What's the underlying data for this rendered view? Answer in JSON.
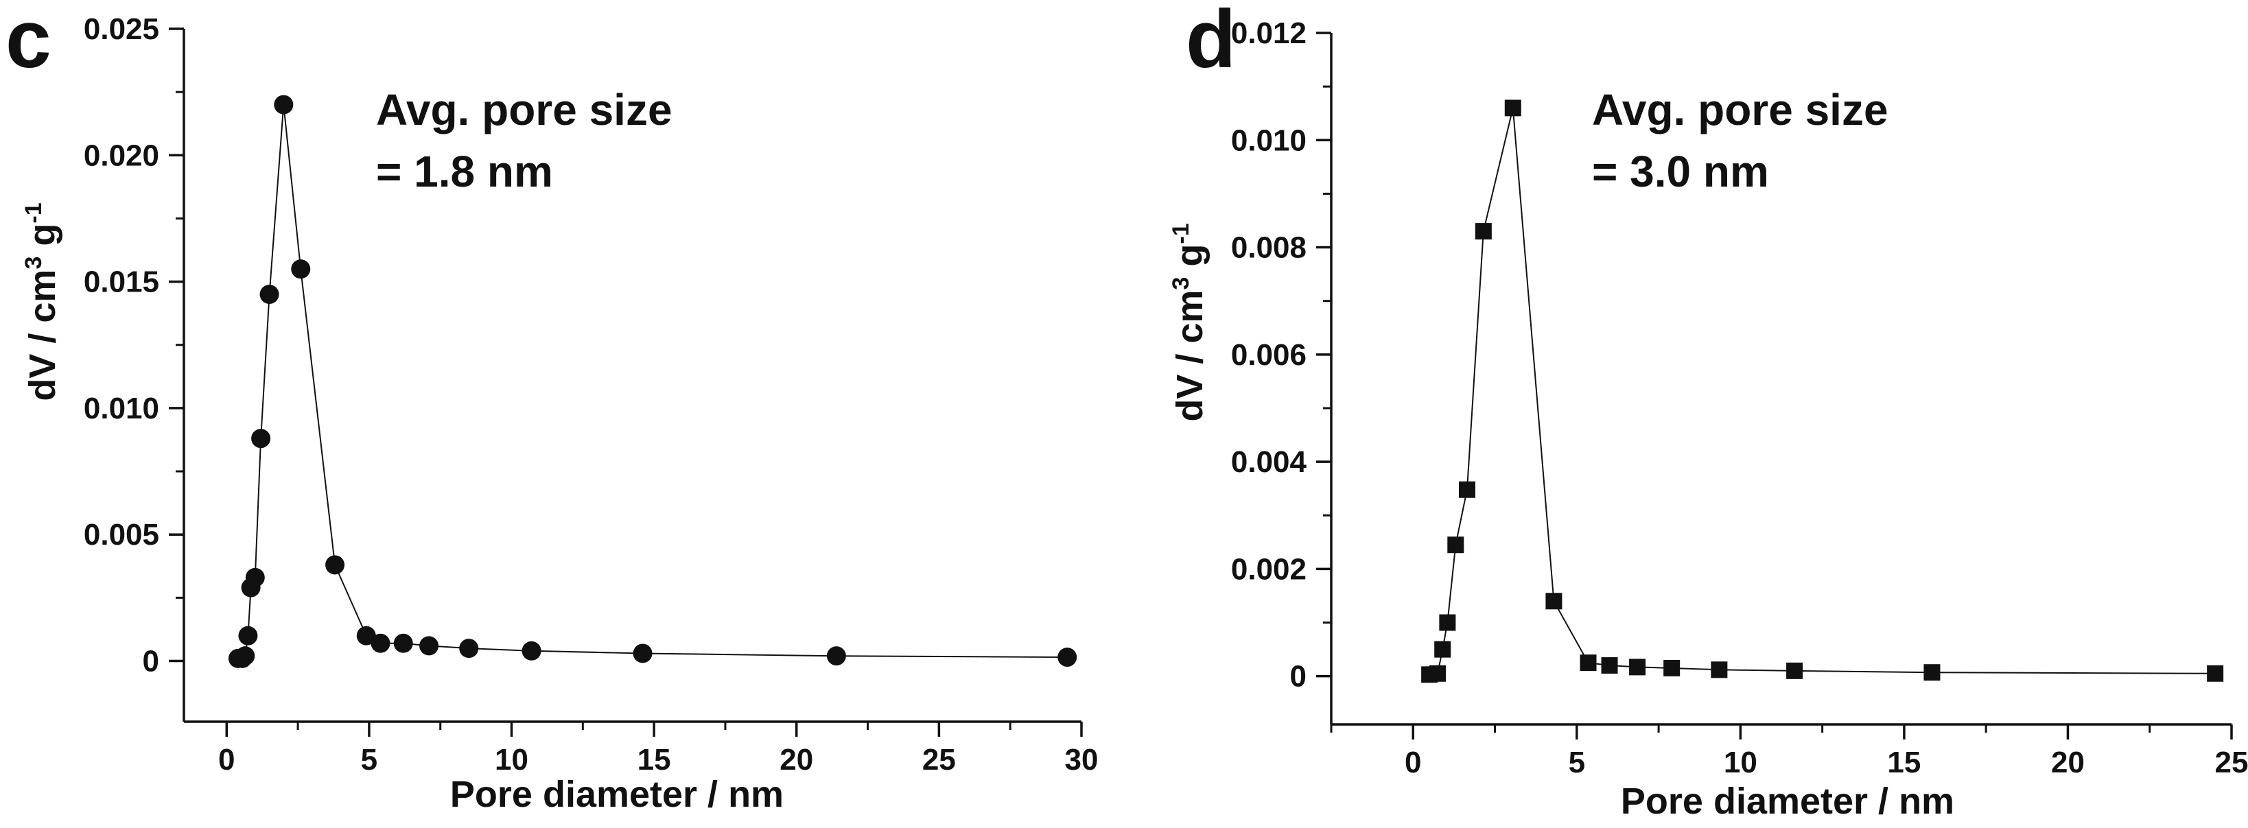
{
  "chart_data": [
    {
      "type": "scatter",
      "panel_label": "c",
      "marker": "circle",
      "annotation": [
        "Avg. pore size",
        "= 1.8 nm"
      ],
      "xlabel": "Pore diameter / nm",
      "ylabel": "dV / cm",
      "ylabel_sup1": "3",
      "ylabel_mid": " g",
      "ylabel_sup2": "-1",
      "xlim": [
        -1.5,
        30
      ],
      "ylim": [
        -0.0024,
        0.025
      ],
      "xticks": [
        0,
        5,
        10,
        15,
        20,
        25,
        30
      ],
      "xtick_labels": [
        "0",
        "5",
        "10",
        "15",
        "20",
        "25",
        "30"
      ],
      "yticks": [
        0,
        0.005,
        0.01,
        0.015,
        0.02,
        0.025
      ],
      "ytick_labels": [
        "0",
        "0.005",
        "0.010",
        "0.015",
        "0.020",
        "0.025"
      ],
      "series": [
        {
          "name": "c",
          "x": [
            0.4,
            0.55,
            0.65,
            0.75,
            0.85,
            1.0,
            1.2,
            1.5,
            2.0,
            2.6,
            3.8,
            4.9,
            5.4,
            6.2,
            7.1,
            8.5,
            10.7,
            14.6,
            21.4,
            29.5
          ],
          "y": [
            0.0001,
            0.0001,
            0.0002,
            0.001,
            0.0029,
            0.0033,
            0.0088,
            0.0145,
            0.022,
            0.0155,
            0.0038,
            0.001,
            0.0007,
            0.0007,
            0.0006,
            0.0005,
            0.0004,
            0.0003,
            0.0002,
            0.00015
          ]
        }
      ]
    },
    {
      "type": "scatter",
      "panel_label": "d",
      "marker": "square",
      "annotation": [
        "Avg. pore size",
        "= 3.0 nm"
      ],
      "xlabel": "Pore diameter / nm",
      "ylabel": "dV / cm",
      "ylabel_sup1": "3",
      "ylabel_mid": " g",
      "ylabel_sup2": "-1",
      "xlim": [
        -2.5,
        25
      ],
      "ylim": [
        -0.0009,
        0.012
      ],
      "xticks": [
        0,
        5,
        10,
        15,
        20,
        25
      ],
      "xtick_labels": [
        "0",
        "5",
        "10",
        "15",
        "20",
        "25"
      ],
      "yticks": [
        0,
        0.002,
        0.004,
        0.006,
        0.008,
        0.01,
        0.012
      ],
      "ytick_labels": [
        "0",
        "0.002",
        "0.004",
        "0.006",
        "0.008",
        "0.010",
        "0.012"
      ],
      "series": [
        {
          "name": "d",
          "x": [
            0.5,
            0.75,
            0.9,
            1.05,
            1.3,
            1.65,
            2.15,
            3.05,
            4.3,
            5.35,
            6.0,
            6.85,
            7.9,
            9.35,
            11.65,
            15.85,
            24.5
          ],
          "y": [
            3e-05,
            5e-05,
            0.0005,
            0.001,
            0.00245,
            0.00348,
            0.0083,
            0.0106,
            0.0014,
            0.00025,
            0.0002,
            0.00017,
            0.00015,
            0.00012,
            0.0001,
            7e-05,
            5e-05
          ]
        }
      ]
    }
  ]
}
